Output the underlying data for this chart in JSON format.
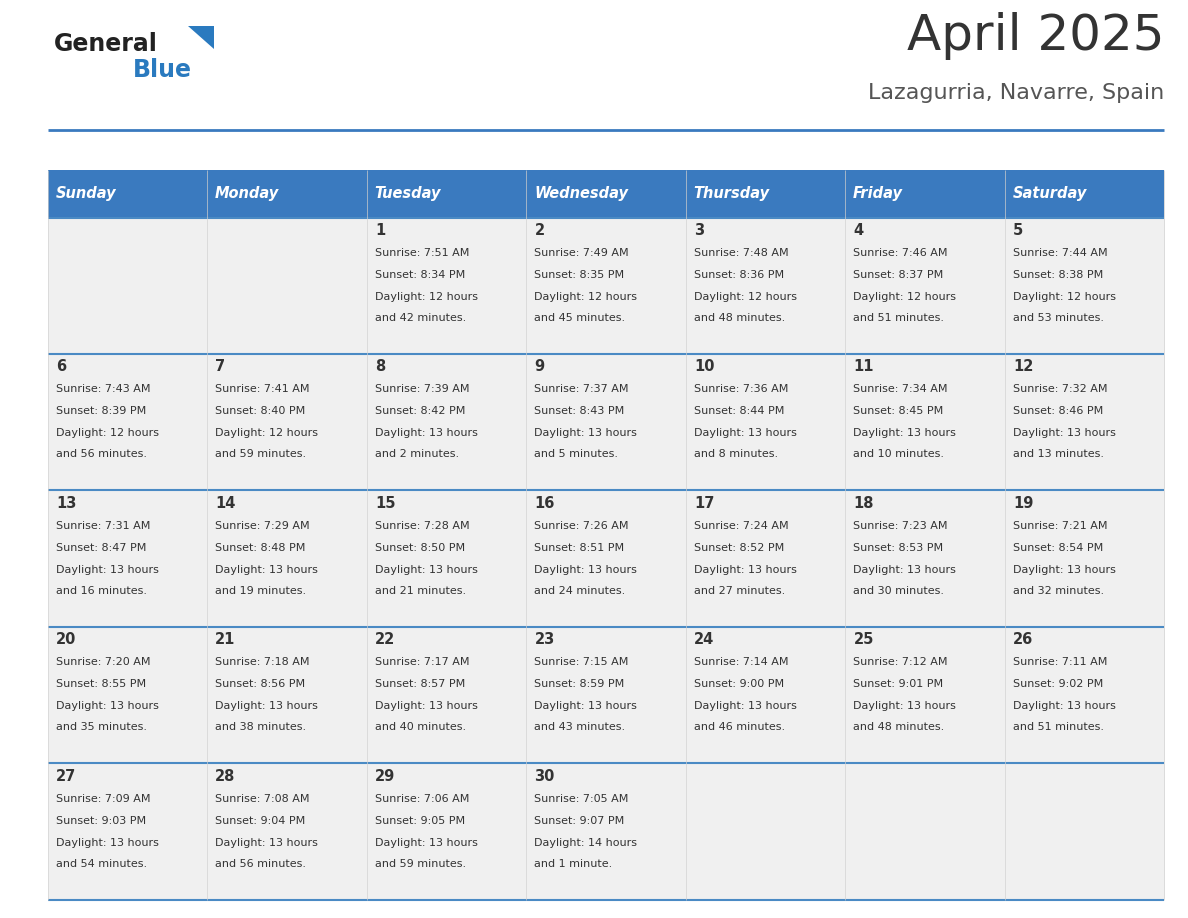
{
  "title": "April 2025",
  "subtitle": "Lazagurria, Navarre, Spain",
  "days_of_week": [
    "Sunday",
    "Monday",
    "Tuesday",
    "Wednesday",
    "Thursday",
    "Friday",
    "Saturday"
  ],
  "header_bg": "#3a7abf",
  "header_text_color": "#ffffff",
  "cell_bg_light": "#f0f0f0",
  "border_color": "#3a7abf",
  "row_line_color": "#4a8ac4",
  "text_color": "#333333",
  "title_color": "#333333",
  "subtitle_color": "#555555",
  "logo_general_color": "#222222",
  "logo_blue_color": "#2a7abf",
  "weeks": [
    [
      {
        "day": null,
        "sunrise": null,
        "sunset": null,
        "daylight_line1": null,
        "daylight_line2": null
      },
      {
        "day": null,
        "sunrise": null,
        "sunset": null,
        "daylight_line1": null,
        "daylight_line2": null
      },
      {
        "day": 1,
        "sunrise": "7:51 AM",
        "sunset": "8:34 PM",
        "daylight_line1": "12 hours",
        "daylight_line2": "and 42 minutes."
      },
      {
        "day": 2,
        "sunrise": "7:49 AM",
        "sunset": "8:35 PM",
        "daylight_line1": "12 hours",
        "daylight_line2": "and 45 minutes."
      },
      {
        "day": 3,
        "sunrise": "7:48 AM",
        "sunset": "8:36 PM",
        "daylight_line1": "12 hours",
        "daylight_line2": "and 48 minutes."
      },
      {
        "day": 4,
        "sunrise": "7:46 AM",
        "sunset": "8:37 PM",
        "daylight_line1": "12 hours",
        "daylight_line2": "and 51 minutes."
      },
      {
        "day": 5,
        "sunrise": "7:44 AM",
        "sunset": "8:38 PM",
        "daylight_line1": "12 hours",
        "daylight_line2": "and 53 minutes."
      }
    ],
    [
      {
        "day": 6,
        "sunrise": "7:43 AM",
        "sunset": "8:39 PM",
        "daylight_line1": "12 hours",
        "daylight_line2": "and 56 minutes."
      },
      {
        "day": 7,
        "sunrise": "7:41 AM",
        "sunset": "8:40 PM",
        "daylight_line1": "12 hours",
        "daylight_line2": "and 59 minutes."
      },
      {
        "day": 8,
        "sunrise": "7:39 AM",
        "sunset": "8:42 PM",
        "daylight_line1": "13 hours",
        "daylight_line2": "and 2 minutes."
      },
      {
        "day": 9,
        "sunrise": "7:37 AM",
        "sunset": "8:43 PM",
        "daylight_line1": "13 hours",
        "daylight_line2": "and 5 minutes."
      },
      {
        "day": 10,
        "sunrise": "7:36 AM",
        "sunset": "8:44 PM",
        "daylight_line1": "13 hours",
        "daylight_line2": "and 8 minutes."
      },
      {
        "day": 11,
        "sunrise": "7:34 AM",
        "sunset": "8:45 PM",
        "daylight_line1": "13 hours",
        "daylight_line2": "and 10 minutes."
      },
      {
        "day": 12,
        "sunrise": "7:32 AM",
        "sunset": "8:46 PM",
        "daylight_line1": "13 hours",
        "daylight_line2": "and 13 minutes."
      }
    ],
    [
      {
        "day": 13,
        "sunrise": "7:31 AM",
        "sunset": "8:47 PM",
        "daylight_line1": "13 hours",
        "daylight_line2": "and 16 minutes."
      },
      {
        "day": 14,
        "sunrise": "7:29 AM",
        "sunset": "8:48 PM",
        "daylight_line1": "13 hours",
        "daylight_line2": "and 19 minutes."
      },
      {
        "day": 15,
        "sunrise": "7:28 AM",
        "sunset": "8:50 PM",
        "daylight_line1": "13 hours",
        "daylight_line2": "and 21 minutes."
      },
      {
        "day": 16,
        "sunrise": "7:26 AM",
        "sunset": "8:51 PM",
        "daylight_line1": "13 hours",
        "daylight_line2": "and 24 minutes."
      },
      {
        "day": 17,
        "sunrise": "7:24 AM",
        "sunset": "8:52 PM",
        "daylight_line1": "13 hours",
        "daylight_line2": "and 27 minutes."
      },
      {
        "day": 18,
        "sunrise": "7:23 AM",
        "sunset": "8:53 PM",
        "daylight_line1": "13 hours",
        "daylight_line2": "and 30 minutes."
      },
      {
        "day": 19,
        "sunrise": "7:21 AM",
        "sunset": "8:54 PM",
        "daylight_line1": "13 hours",
        "daylight_line2": "and 32 minutes."
      }
    ],
    [
      {
        "day": 20,
        "sunrise": "7:20 AM",
        "sunset": "8:55 PM",
        "daylight_line1": "13 hours",
        "daylight_line2": "and 35 minutes."
      },
      {
        "day": 21,
        "sunrise": "7:18 AM",
        "sunset": "8:56 PM",
        "daylight_line1": "13 hours",
        "daylight_line2": "and 38 minutes."
      },
      {
        "day": 22,
        "sunrise": "7:17 AM",
        "sunset": "8:57 PM",
        "daylight_line1": "13 hours",
        "daylight_line2": "and 40 minutes."
      },
      {
        "day": 23,
        "sunrise": "7:15 AM",
        "sunset": "8:59 PM",
        "daylight_line1": "13 hours",
        "daylight_line2": "and 43 minutes."
      },
      {
        "day": 24,
        "sunrise": "7:14 AM",
        "sunset": "9:00 PM",
        "daylight_line1": "13 hours",
        "daylight_line2": "and 46 minutes."
      },
      {
        "day": 25,
        "sunrise": "7:12 AM",
        "sunset": "9:01 PM",
        "daylight_line1": "13 hours",
        "daylight_line2": "and 48 minutes."
      },
      {
        "day": 26,
        "sunrise": "7:11 AM",
        "sunset": "9:02 PM",
        "daylight_line1": "13 hours",
        "daylight_line2": "and 51 minutes."
      }
    ],
    [
      {
        "day": 27,
        "sunrise": "7:09 AM",
        "sunset": "9:03 PM",
        "daylight_line1": "13 hours",
        "daylight_line2": "and 54 minutes."
      },
      {
        "day": 28,
        "sunrise": "7:08 AM",
        "sunset": "9:04 PM",
        "daylight_line1": "13 hours",
        "daylight_line2": "and 56 minutes."
      },
      {
        "day": 29,
        "sunrise": "7:06 AM",
        "sunset": "9:05 PM",
        "daylight_line1": "13 hours",
        "daylight_line2": "and 59 minutes."
      },
      {
        "day": 30,
        "sunrise": "7:05 AM",
        "sunset": "9:07 PM",
        "daylight_line1": "14 hours",
        "daylight_line2": "and 1 minute."
      },
      {
        "day": null,
        "sunrise": null,
        "sunset": null,
        "daylight_line1": null,
        "daylight_line2": null
      },
      {
        "day": null,
        "sunrise": null,
        "sunset": null,
        "daylight_line1": null,
        "daylight_line2": null
      },
      {
        "day": null,
        "sunrise": null,
        "sunset": null,
        "daylight_line1": null,
        "daylight_line2": null
      }
    ]
  ]
}
